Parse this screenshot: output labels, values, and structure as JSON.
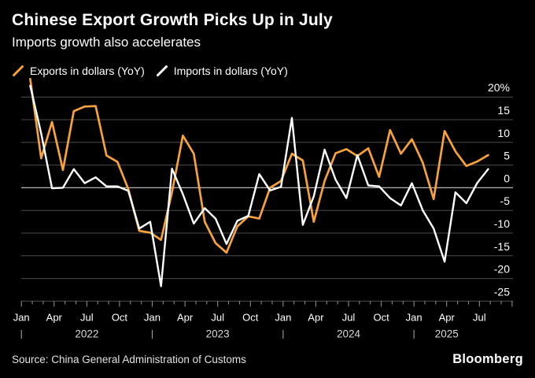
{
  "ui": {
    "header": {
      "title": "Chinese Export Growth Picks Up in July",
      "subtitle": "Imports growth also accelerates"
    },
    "legend": {
      "items": [
        {
          "label": "Exports in dollars (YoY)",
          "color": "#f8a23b",
          "icon": "line-slash"
        },
        {
          "label": "Imports in dollars (YoY)",
          "color": "#ffffff",
          "icon": "line-slash"
        }
      ]
    },
    "footer": {
      "source": "Source: China General Administration of Customs",
      "logo": "Bloomberg"
    }
  },
  "colors": {
    "background": "#000000",
    "exports_line": "#f8a23b",
    "imports_line": "#ffffff",
    "gridline": "#4d4d4d",
    "zero_line": "#b5b5b5",
    "tick": "#999999",
    "axis_label": "#ffffff",
    "year_label": "#d9d9d9"
  },
  "chart_data": {
    "type": "line",
    "title": "Chinese Export Growth Picks Up in July",
    "subtitle": "Imports growth also accelerates",
    "unit": "percent YoY",
    "grid": "horizontal",
    "legend_position": "top-left",
    "ylim": [
      -25,
      25
    ],
    "y_ticks": [
      20,
      15,
      10,
      5,
      0,
      -5,
      -10,
      -15,
      -20,
      -25
    ],
    "y_tick_labels": [
      "20%",
      "15",
      "10",
      "5",
      "0",
      "-5",
      "-10",
      "-15",
      "-20",
      "-25"
    ],
    "x_tick_quarter_labels": [
      "Jan",
      "Apr",
      "Jul",
      "Oct"
    ],
    "years": [
      "2022",
      "2023",
      "2024",
      "2025"
    ],
    "x": [
      "Jan 2022",
      "Feb 2022",
      "Mar 2022",
      "Apr 2022",
      "May 2022",
      "Jun 2022",
      "Jul 2022",
      "Aug 2022",
      "Sep 2022",
      "Oct 2022",
      "Nov 2022",
      "Dec 2022",
      "Jan 2023",
      "Feb 2023",
      "Mar 2023",
      "Apr 2023",
      "May 2023",
      "Jun 2023",
      "Jul 2023",
      "Aug 2023",
      "Sep 2023",
      "Oct 2023",
      "Nov 2023",
      "Dec 2023",
      "Jan 2024",
      "Feb 2024",
      "Mar 2024",
      "Apr 2024",
      "May 2024",
      "Jun 2024",
      "Jul 2024",
      "Aug 2024",
      "Sep 2024",
      "Oct 2024",
      "Nov 2024",
      "Dec 2024",
      "Jan 2025",
      "Feb 2025",
      "Mar 2025",
      "Apr 2025",
      "May 2025",
      "Jun 2025",
      "Jul 2025"
    ],
    "series": [
      {
        "name": "Exports in dollars (YoY)",
        "color": "#f8a23b",
        "values": [
          24,
          6.5,
          14.5,
          3.9,
          16.9,
          17.9,
          18,
          7.1,
          5.7,
          -0.3,
          -9.5,
          -9.9,
          -11.5,
          -1,
          11.5,
          7.5,
          -7.5,
          -12.2,
          -14.3,
          -8.5,
          -6.3,
          -6.8,
          0,
          1.5,
          7.5,
          6,
          -7.5,
          1.5,
          7.6,
          8.5,
          7,
          8.7,
          2.4,
          12.7,
          7.5,
          10.7,
          5.5,
          -2.5,
          12.5,
          8,
          4.8,
          5.8,
          7.2
        ]
      },
      {
        "name": "Imports in dollars (YoY)",
        "color": "#ffffff",
        "values": [
          22.5,
          12,
          -0.1,
          0,
          4.1,
          1,
          2.3,
          0.3,
          0.3,
          -0.7,
          -9,
          -7.5,
          -21.7,
          4.2,
          -1.4,
          -7.9,
          -4.5,
          -6.8,
          -12.4,
          -7.3,
          -6.2,
          3,
          -0.6,
          0.2,
          15.4,
          -8.2,
          -1.9,
          8.4,
          1.8,
          -2.3,
          7.2,
          0.5,
          0.3,
          -2.3,
          -3.9,
          1,
          -5,
          -9,
          -16.3,
          -1,
          -3.4,
          1.1,
          4.1
        ]
      }
    ]
  }
}
